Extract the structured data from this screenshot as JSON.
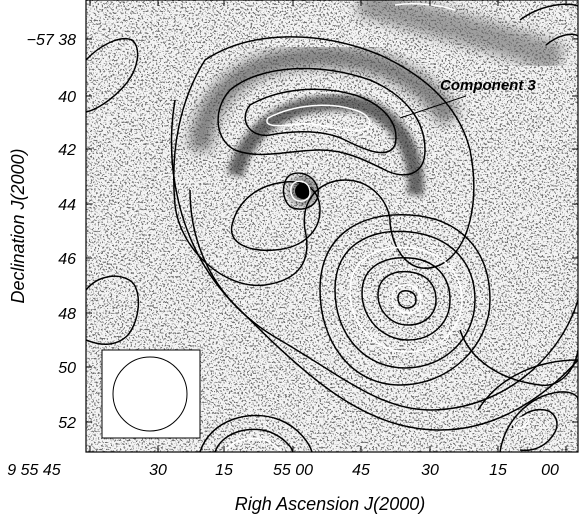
{
  "figure": {
    "annotation": "Component 3",
    "xlabel": "Righ Ascension J(2000)",
    "ylabel": "Declination  J(2000)",
    "y_ticks": [
      {
        "label": "−57 38"
      },
      {
        "label": "40"
      },
      {
        "label": "42"
      },
      {
        "label": "44"
      },
      {
        "label": "46"
      },
      {
        "label": "48"
      },
      {
        "label": "50"
      },
      {
        "label": "52"
      }
    ],
    "x_ticks": [
      {
        "label": "9 55 45"
      },
      {
        "label": "30"
      },
      {
        "label": "15"
      },
      {
        "label": "55 00"
      },
      {
        "label": "45"
      },
      {
        "label": "30"
      },
      {
        "label": "15"
      },
      {
        "label": "00"
      }
    ]
  }
}
